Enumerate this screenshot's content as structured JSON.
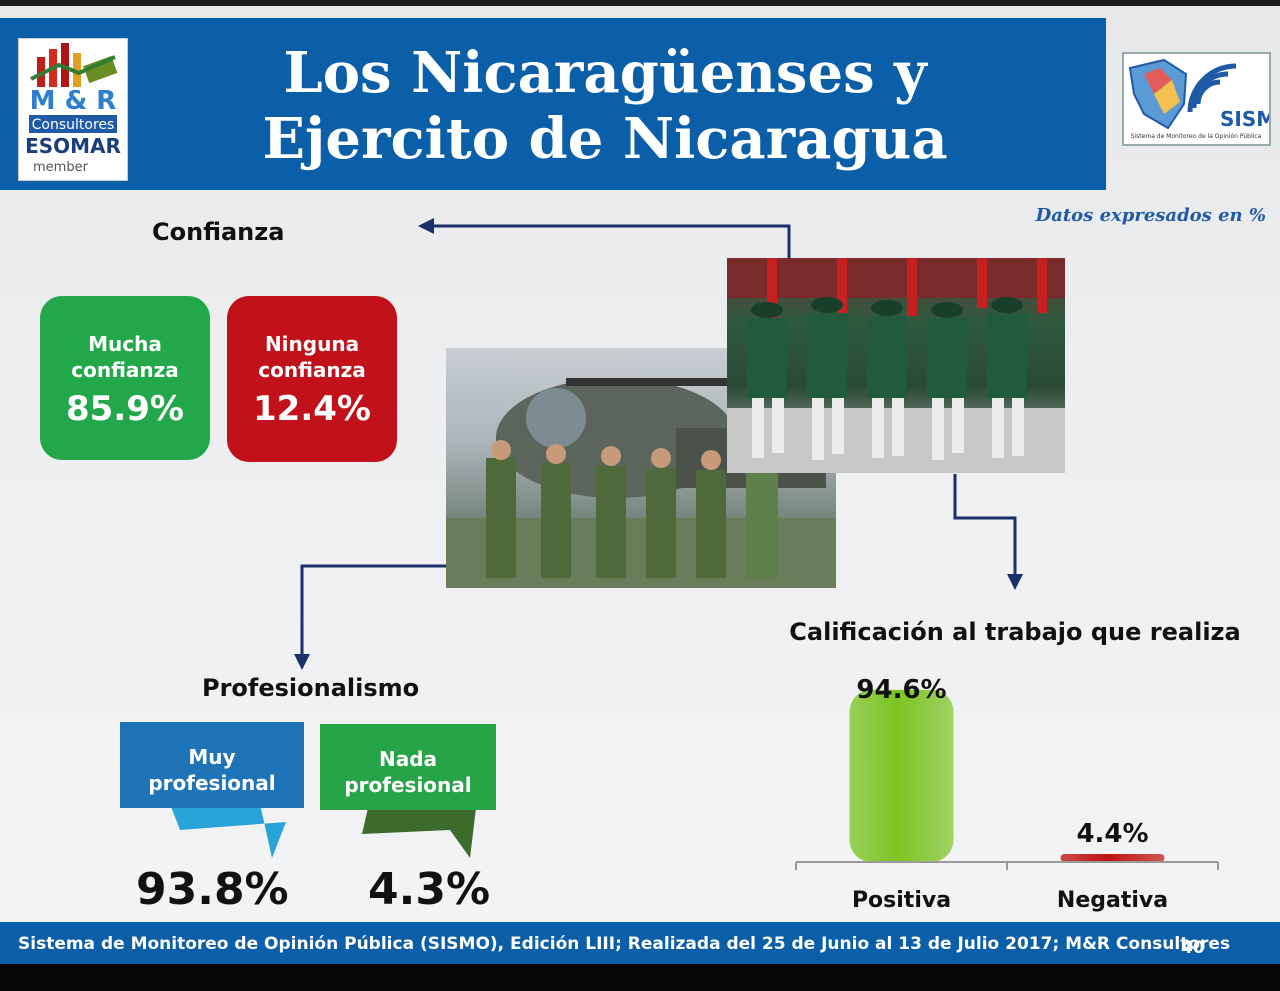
{
  "header": {
    "title_line1": "Los Nicaragüenses y",
    "title_line2": "Ejercito de Nicaragua",
    "logo_left": {
      "line1": "M & R",
      "line2": "Consultores",
      "line3": "ESOMAR",
      "line4": "member"
    },
    "logo_right": {
      "name": "SISMO",
      "tagline": "Sistema de Monitoreo de la Opinión Pública"
    }
  },
  "subnote": "Datos expresados en  %",
  "confianza": {
    "title": "Confianza",
    "cards": [
      {
        "label_line1": "Mucha",
        "label_line2": "confianza",
        "value": "85.9%",
        "color": "#22a84a"
      },
      {
        "label_line1": "Ninguna",
        "label_line2": "confianza",
        "value": "12.4%",
        "color": "#c1111a"
      }
    ]
  },
  "profesionalismo": {
    "title": "Profesionalismo",
    "items": [
      {
        "label_line1": "Muy",
        "label_line2": "profesional",
        "value": "93.8%",
        "color": "#1f74b8",
        "tail_color": "#2aa3d8"
      },
      {
        "label_line1": "Nada",
        "label_line2": "profesional",
        "value": "4.3%",
        "color": "#27a448",
        "tail_color": "#3d6b2b"
      }
    ]
  },
  "chart_data": {
    "type": "bar",
    "title": "Calificación al trabajo que realiza",
    "categories": [
      "Positiva",
      "Negativa"
    ],
    "values": [
      94.6,
      4.4
    ],
    "value_labels": [
      "94.6%",
      "4.4%"
    ],
    "colors": [
      "#7cc424",
      "#c0140f"
    ],
    "ylim": [
      0,
      100
    ]
  },
  "footer": {
    "text": "Sistema de Monitoreo de Opinión Pública (SISMO), Edición LIII; Realizada del 25 de Junio al 13 de Julio 2017; M&R Consultores",
    "page": "40"
  }
}
